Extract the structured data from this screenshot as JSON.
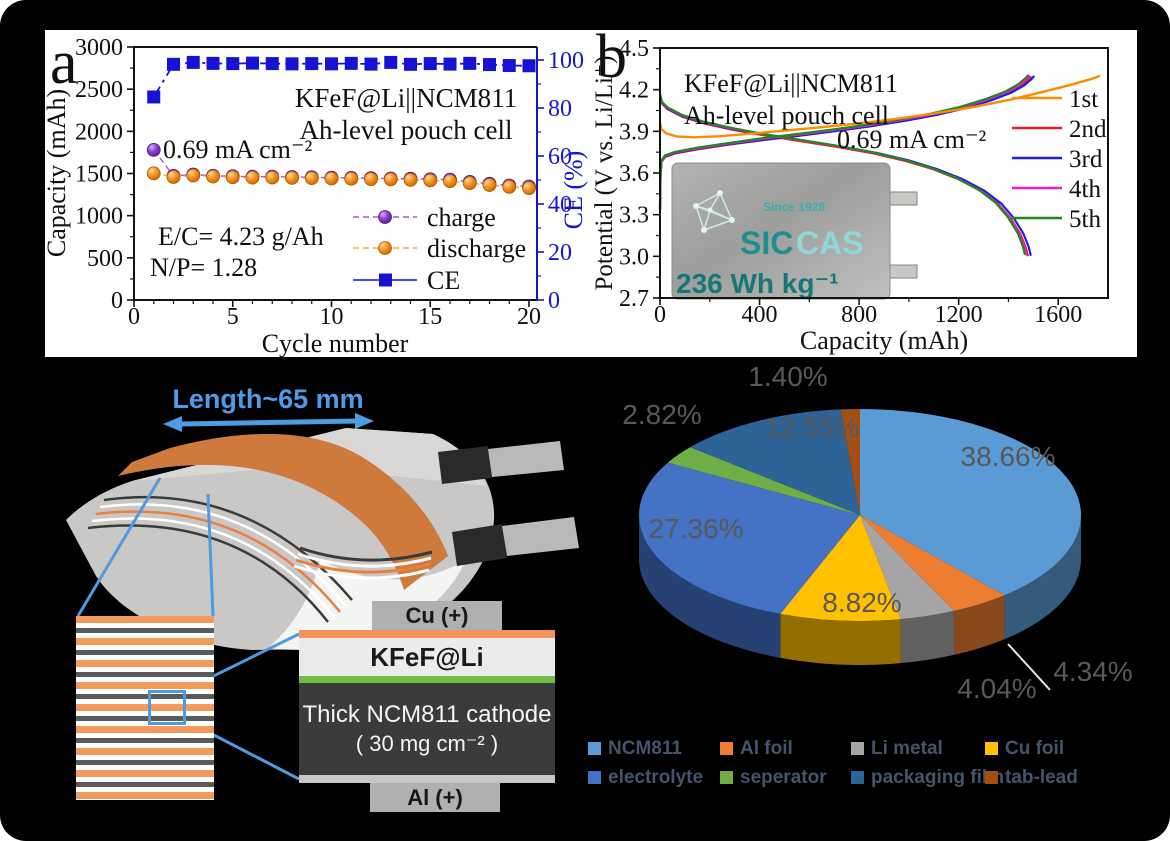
{
  "figure": {
    "panel_a_letter": "a",
    "panel_b_letter": "b"
  },
  "chart_data": [
    {
      "id": "cycling_performance",
      "type": "scatter",
      "panel": "a",
      "title_line1": "KFeF@Li||NCM811",
      "title_line2": "Ah-level pouch cell",
      "annotations": {
        "rate": "0.69 mA cm⁻²",
        "ec_ratio": "E/C= 4.23 g/Ah",
        "np_ratio": "N/P= 1.28"
      },
      "xlabel": "Cycle number",
      "ylabel": "Capacity (mAh)",
      "y2label": "CE (%)",
      "xlim": [
        0,
        20.4
      ],
      "ylim": [
        0,
        3000
      ],
      "y2lim": [
        0,
        105
      ],
      "xticks": [
        0,
        5,
        10,
        15,
        20
      ],
      "yticks": [
        0,
        500,
        1000,
        1500,
        2000,
        2500,
        3000
      ],
      "y2ticks": [
        0,
        20,
        40,
        60,
        80,
        100
      ],
      "cycles": [
        1,
        2,
        3,
        4,
        5,
        6,
        7,
        8,
        9,
        10,
        11,
        12,
        13,
        14,
        15,
        16,
        17,
        18,
        19,
        20
      ],
      "series": [
        {
          "name": "charge",
          "axis": "y1",
          "color": "#7a2bc8",
          "line_color": "#9a5bd8",
          "values": [
            1780,
            1472,
            1488,
            1473,
            1467,
            1462,
            1463,
            1458,
            1455,
            1451,
            1448,
            1445,
            1441,
            1437,
            1432,
            1427,
            1400,
            1378,
            1358,
            1345
          ]
        },
        {
          "name": "discharge",
          "axis": "y1",
          "color": "#f08214",
          "line_color": "#f5a855",
          "values": [
            1502,
            1459,
            1477,
            1464,
            1456,
            1451,
            1452,
            1448,
            1445,
            1441,
            1438,
            1434,
            1430,
            1424,
            1418,
            1410,
            1386,
            1363,
            1342,
            1326
          ]
        },
        {
          "name": "CE",
          "axis": "y2",
          "color": "#1414d2",
          "line_color": "#1414d2",
          "values": [
            84.6,
            98.2,
            99.0,
            98.6,
            98.5,
            98.7,
            98.5,
            98.4,
            98.5,
            98.4,
            98.6,
            98.3,
            99.0,
            98.2,
            98.5,
            98.3,
            98.6,
            98.1,
            97.7,
            97.6
          ]
        }
      ]
    },
    {
      "id": "voltage_profiles",
      "type": "line",
      "panel": "b",
      "title_line1": "KFeF@Li||NCM811",
      "title_line2": "Ah-level pouch cell",
      "annotation_rate": "0.69 mA cm⁻²",
      "xlabel": "Capacity (mAh)",
      "ylabel": "Potential (V vs. Li/Li⁺)",
      "xlim": [
        0,
        1800
      ],
      "ylim": [
        2.7,
        4.5
      ],
      "xticks": [
        0,
        400,
        800,
        1200,
        1600
      ],
      "yticks": [
        2.7,
        3.0,
        3.3,
        3.6,
        3.9,
        4.2,
        4.5
      ],
      "series": [
        {
          "name": "1st",
          "color": "#ff8c00"
        },
        {
          "name": "2nd",
          "color": "#eb1c24",
          "dx": 0,
          "dy": 0
        },
        {
          "name": "3rd",
          "color": "#1f1fe8",
          "dx": 12,
          "dy": 0.004
        },
        {
          "name": "4th",
          "color": "#f21cc7",
          "dx": -6,
          "dy": 0.008
        },
        {
          "name": "5th",
          "color": "#1c8a1c",
          "dx": -12,
          "dy": 0.012
        }
      ],
      "charge_1st": [
        [
          0,
          3.96
        ],
        [
          6,
          3.915
        ],
        [
          25,
          3.885
        ],
        [
          70,
          3.862
        ],
        [
          140,
          3.857
        ],
        [
          240,
          3.865
        ],
        [
          360,
          3.882
        ],
        [
          500,
          3.905
        ],
        [
          650,
          3.93
        ],
        [
          800,
          3.958
        ],
        [
          950,
          3.99
        ],
        [
          1100,
          4.028
        ],
        [
          1250,
          4.072
        ],
        [
          1400,
          4.125
        ],
        [
          1530,
          4.18
        ],
        [
          1650,
          4.235
        ],
        [
          1730,
          4.275
        ],
        [
          1768,
          4.3
        ]
      ],
      "charge_base": [
        [
          0,
          3.33
        ],
        [
          2,
          3.58
        ],
        [
          6,
          3.68
        ],
        [
          20,
          3.715
        ],
        [
          60,
          3.74
        ],
        [
          150,
          3.77
        ],
        [
          280,
          3.805
        ],
        [
          420,
          3.838
        ],
        [
          560,
          3.868
        ],
        [
          700,
          3.9
        ],
        [
          840,
          3.935
        ],
        [
          980,
          3.975
        ],
        [
          1100,
          4.015
        ],
        [
          1220,
          4.065
        ],
        [
          1320,
          4.12
        ],
        [
          1400,
          4.175
        ],
        [
          1450,
          4.225
        ],
        [
          1480,
          4.27
        ],
        [
          1492,
          4.295
        ]
      ],
      "discharge_base": [
        [
          0,
          4.155
        ],
        [
          8,
          4.1
        ],
        [
          30,
          4.06
        ],
        [
          90,
          4.005
        ],
        [
          180,
          3.955
        ],
        [
          300,
          3.908
        ],
        [
          440,
          3.865
        ],
        [
          580,
          3.825
        ],
        [
          720,
          3.785
        ],
        [
          860,
          3.74
        ],
        [
          990,
          3.685
        ],
        [
          1100,
          3.625
        ],
        [
          1200,
          3.555
        ],
        [
          1290,
          3.47
        ],
        [
          1360,
          3.375
        ],
        [
          1410,
          3.27
        ],
        [
          1448,
          3.16
        ],
        [
          1470,
          3.06
        ],
        [
          1478,
          3.0
        ]
      ],
      "inset": {
        "since": "Since 1928",
        "logo_sic": "SIC",
        "logo_cas": "CAS",
        "energy": "236 Wh kg⁻¹"
      }
    },
    {
      "id": "cell_mass_breakdown",
      "type": "pie",
      "labels": [
        "NCM811",
        "Al foil",
        "Li metal",
        "Cu foil",
        "electrolyte",
        "seperator",
        "packaging film",
        "tab-lead"
      ],
      "values": [
        38.66,
        4.34,
        4.04,
        8.82,
        27.36,
        2.82,
        12.55,
        1.4
      ],
      "colors": [
        "#5B9BD5",
        "#ED7D31",
        "#A5A5A5",
        "#FFC000",
        "#4472C4",
        "#70AD47",
        "#2D6396",
        "#A34E12"
      ],
      "label_color": "#595959",
      "legend_text_color": "#44546A",
      "legend_position": "bottom"
    }
  ],
  "diagram": {
    "length_label": "Length~65 mm",
    "cu_tab": "Cu (+)",
    "kfef_layer": "KFeF@Li",
    "cathode_line1": "Thick NCM811 cathode",
    "cathode_line2": "( 30 mg cm⁻² )",
    "al_tab": "Al (+)"
  }
}
